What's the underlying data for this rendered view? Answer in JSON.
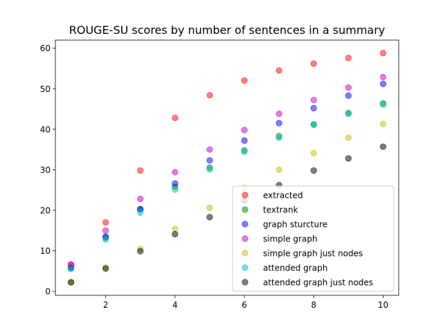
{
  "chart_data": {
    "type": "scatter",
    "title": "ROUGE-SU scores by number of sentences in a summary",
    "xlabel": "",
    "ylabel": "",
    "xlim": [
      0.55,
      10.45
    ],
    "ylim": [
      -1.0,
      62.0
    ],
    "xticks": [
      2,
      4,
      6,
      8,
      10
    ],
    "yticks": [
      0,
      10,
      20,
      30,
      40,
      50,
      60
    ],
    "grid": false,
    "legend_position": "lower right",
    "x": [
      1,
      2,
      3,
      4,
      5,
      6,
      7,
      8,
      9,
      10
    ],
    "series": [
      {
        "name": "extracted",
        "color": "#ff0000",
        "values": [
          6.6,
          17.0,
          29.8,
          42.8,
          48.4,
          52.0,
          54.5,
          56.2,
          57.6,
          58.8
        ]
      },
      {
        "name": "textrank",
        "color": "#008000",
        "values": [
          5.8,
          13.2,
          20.2,
          25.8,
          30.5,
          34.8,
          38.3,
          41.2,
          44.0,
          46.4
        ]
      },
      {
        "name": "graph sturcture",
        "color": "#0000ff",
        "values": [
          5.8,
          13.5,
          20.3,
          26.6,
          32.3,
          37.2,
          41.5,
          45.2,
          48.3,
          51.2
        ]
      },
      {
        "name": "simple graph",
        "color": "#bf00bf",
        "values": [
          6.6,
          15.0,
          22.8,
          29.4,
          35.0,
          39.8,
          43.8,
          47.2,
          50.3,
          52.9
        ]
      },
      {
        "name": "simple graph just nodes",
        "color": "#bfbf00",
        "values": [
          2.3,
          5.9,
          10.5,
          15.4,
          20.6,
          25.5,
          30.0,
          34.1,
          37.9,
          41.3
        ]
      },
      {
        "name": "attended graph",
        "color": "#00bfbf",
        "values": [
          5.5,
          12.8,
          19.4,
          25.1,
          30.1,
          34.4,
          37.9,
          41.1,
          43.8,
          46.1
        ]
      },
      {
        "name": "attended graph just nodes",
        "color": "#000000",
        "values": [
          2.2,
          5.6,
          9.9,
          14.1,
          18.3,
          22.4,
          26.2,
          29.8,
          32.8,
          35.7
        ]
      }
    ]
  }
}
